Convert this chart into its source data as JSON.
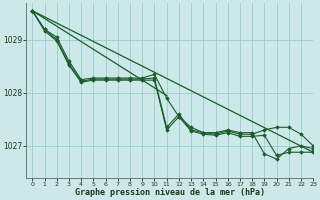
{
  "title": "Graphe pression niveau de la mer (hPa)",
  "background_color": "#cce8e8",
  "grid_color": "#99cccc",
  "line_color": "#1a5c2a",
  "marker_color": "#1a5c2a",
  "xlim": [
    -0.5,
    23
  ],
  "ylim": [
    1026.4,
    1029.7
  ],
  "yticks": [
    1027,
    1028,
    1029
  ],
  "xticks": [
    0,
    1,
    2,
    3,
    4,
    5,
    6,
    7,
    8,
    9,
    10,
    11,
    12,
    13,
    14,
    15,
    16,
    17,
    18,
    19,
    20,
    21,
    22,
    23
  ],
  "series_with_markers": [
    [
      1029.55,
      1029.2,
      1029.05,
      1028.6,
      1028.25,
      1028.28,
      1028.28,
      1028.28,
      1028.28,
      1028.28,
      1028.35,
      1027.9,
      1027.55,
      1027.35,
      1027.25,
      1027.25,
      1027.3,
      1027.25,
      1027.25,
      1026.85,
      1026.75,
      1026.95,
      1027.0,
      1026.95
    ],
    [
      1029.55,
      1029.2,
      1029.0,
      1028.55,
      1028.22,
      1028.26,
      1028.26,
      1028.26,
      1028.26,
      1028.26,
      1028.28,
      1027.35,
      1027.6,
      1027.3,
      1027.25,
      1027.22,
      1027.28,
      1027.22,
      1027.22,
      1027.3,
      1027.35,
      1027.35,
      1027.22,
      1027.0
    ],
    [
      1029.55,
      1029.17,
      1028.98,
      1028.52,
      1028.2,
      1028.24,
      1028.24,
      1028.24,
      1028.24,
      1028.24,
      1028.24,
      1027.3,
      1027.55,
      1027.28,
      1027.22,
      1027.2,
      1027.25,
      1027.18,
      1027.18,
      1027.2,
      1026.82,
      1026.88,
      1026.88,
      1026.88
    ]
  ],
  "series_straight": [
    [
      [
        0,
        23
      ],
      [
        1029.55,
        1026.88
      ]
    ],
    [
      [
        0,
        11
      ],
      [
        1029.55,
        1027.95
      ]
    ]
  ]
}
